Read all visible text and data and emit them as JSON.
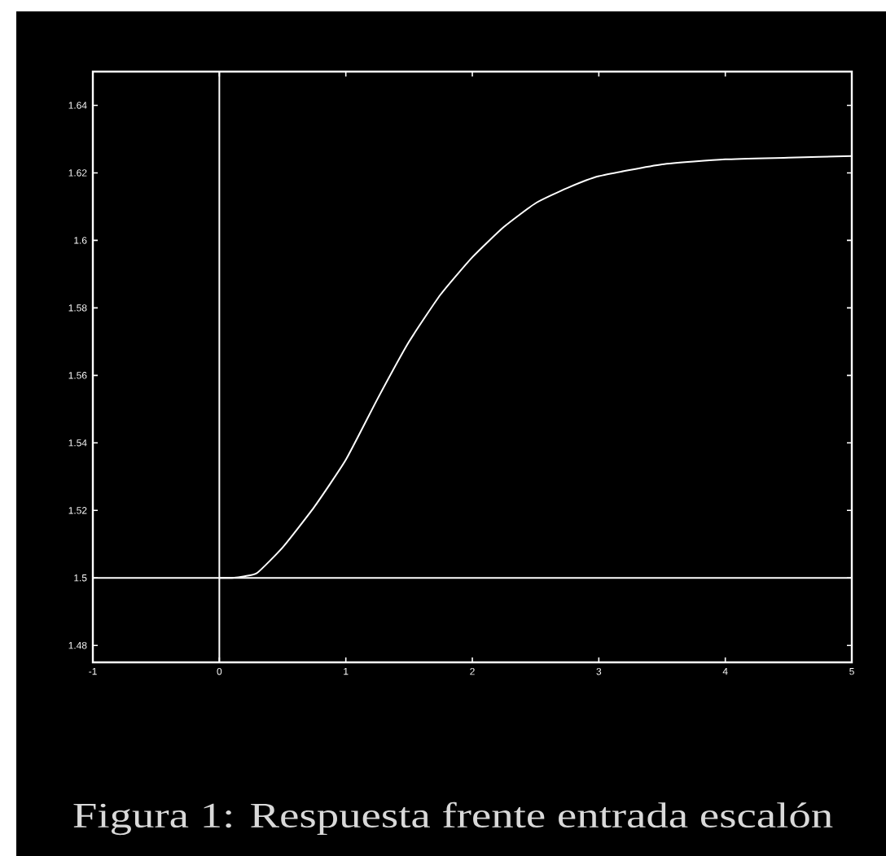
{
  "chart_data": {
    "type": "line",
    "annotations": [
      "Figura 1: Respuesta frente entrada escalón"
    ],
    "x": [
      0,
      0.1,
      0.2,
      0.3,
      0.5,
      0.75,
      1.0,
      1.25,
      1.5,
      1.75,
      2.0,
      2.25,
      2.5,
      2.75,
      3.0,
      3.5,
      4.0,
      4.5,
      5.0
    ],
    "series": [
      {
        "color": "#ffffff",
        "values": [
          1.5,
          1.5,
          1.5005,
          1.5015,
          1.509,
          1.521,
          1.535,
          1.553,
          1.57,
          1.584,
          1.595,
          1.604,
          1.611,
          1.6155,
          1.619,
          1.6225,
          1.624,
          1.6245,
          1.625
        ]
      }
    ],
    "xlim": [
      -1,
      5
    ],
    "xticks": [
      -1,
      0,
      1,
      2,
      3,
      4,
      5
    ],
    "ylim": [
      1.475,
      1.65
    ],
    "yticks": [
      1.48,
      1.5,
      1.52,
      1.54,
      1.56,
      1.58,
      1.6,
      1.62,
      1.64
    ],
    "ref_lines": [
      {
        "axis": "x",
        "value": 0,
        "color": "#ffffff"
      },
      {
        "axis": "y",
        "value": 1.5,
        "color": "#ffffff"
      }
    ],
    "grid": false,
    "marker": "none",
    "line_style": "solid"
  }
}
